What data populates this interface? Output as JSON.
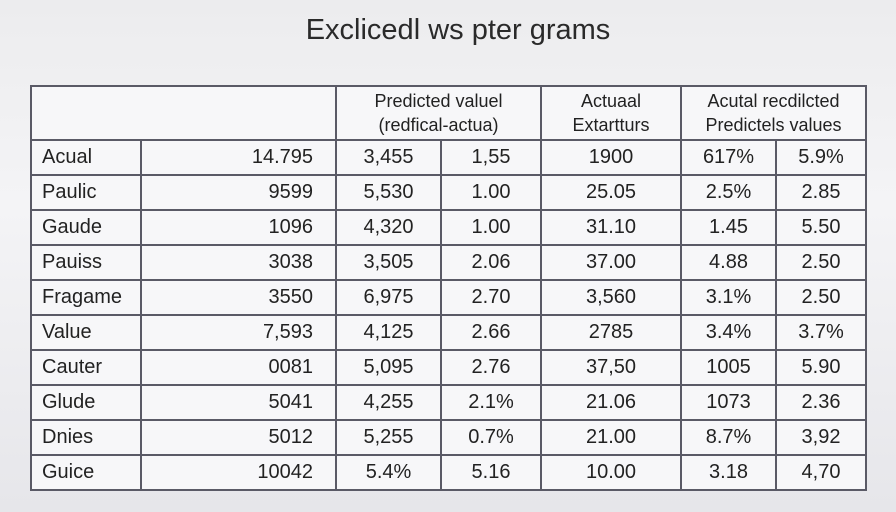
{
  "title": "Exclicedl ws pter grams",
  "header": [
    [
      "Predicted valuel",
      "(redfical-actua)"
    ],
    [
      "Actuaal",
      "Extartturs"
    ],
    [
      "Acutal recdilcted",
      "Predictels values"
    ]
  ],
  "table": {
    "rows": [
      [
        "Acual",
        "14.795",
        "3,455",
        "1,55",
        "1900",
        "617%",
        "5.9%"
      ],
      [
        "Paulic",
        "9599",
        "5,530",
        "1.00",
        "25.05",
        "2.5%",
        "2.85"
      ],
      [
        "Gaude",
        "1096",
        "4,320",
        "1.00",
        "31.10",
        "1.45",
        "5.50"
      ],
      [
        "Pauiss",
        "3038",
        "3,505",
        "2.06",
        "37.00",
        "4.88",
        "2.50"
      ],
      [
        "Fragame",
        "3550",
        "6,975",
        "2.70",
        "3,560",
        "3.1%",
        "2.50"
      ],
      [
        "Value",
        "7,593",
        "4,125",
        "2.66",
        "2785",
        "3.4%",
        "3.7%"
      ],
      [
        "Cauter",
        "0081",
        "5,095",
        "2.76",
        "37,50",
        "1005",
        "5.90"
      ],
      [
        "Glude",
        "5041",
        "4,255",
        "2.1%",
        "21.06",
        "1073",
        "2.36"
      ],
      [
        "Dnies",
        "5012",
        "5,255",
        "0.7%",
        "21.00",
        "8.7%",
        "3,92"
      ],
      [
        "Guice",
        "10042",
        "5.4%",
        "5.16",
        "10.00",
        "3.18",
        "4,70"
      ]
    ]
  }
}
